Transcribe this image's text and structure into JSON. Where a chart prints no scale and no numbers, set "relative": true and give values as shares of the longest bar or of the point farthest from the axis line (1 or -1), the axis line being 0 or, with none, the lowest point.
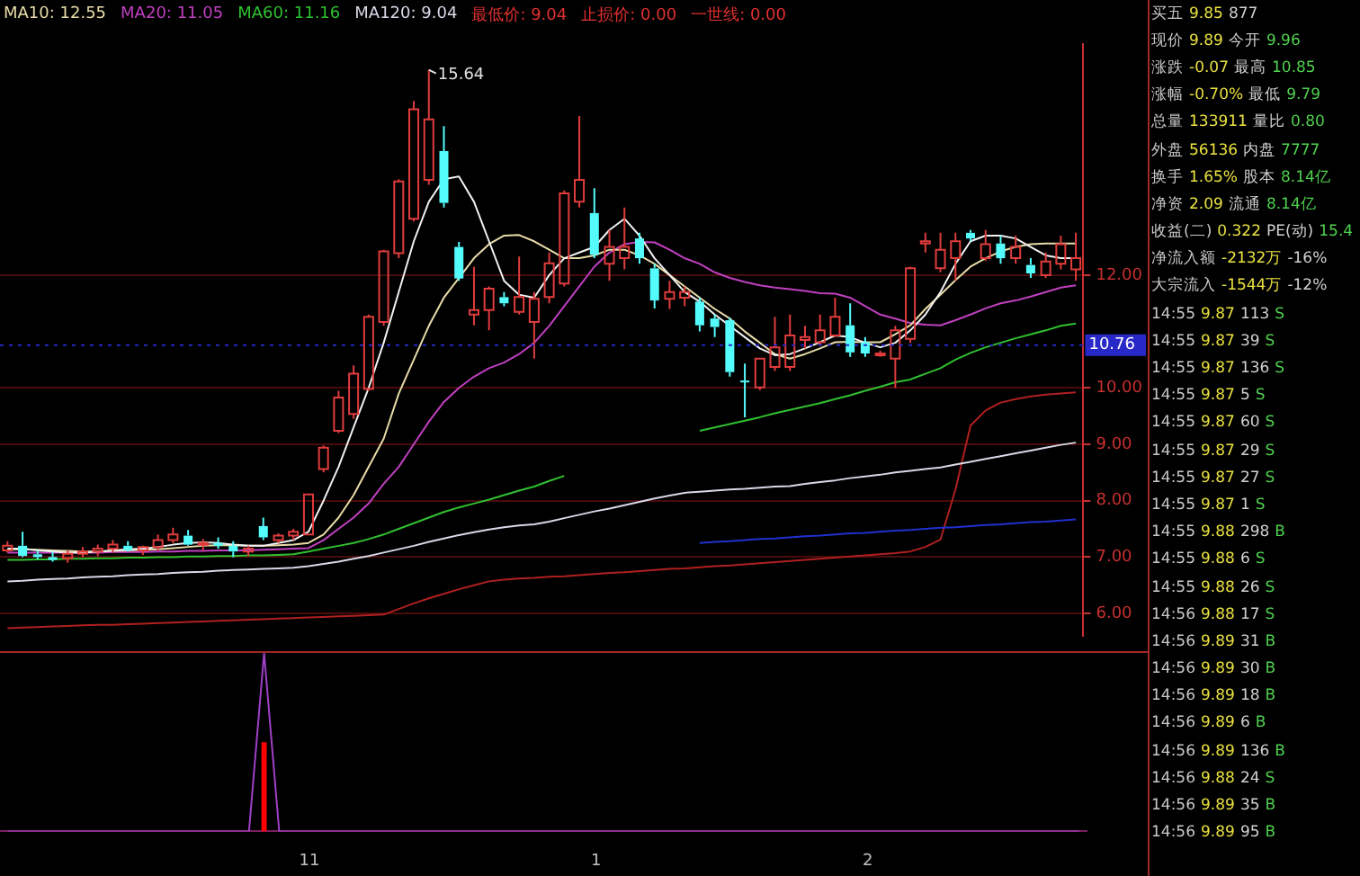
{
  "chart_data": [
    {
      "type": "candlestick",
      "legend": "top left",
      "grid": "y",
      "ylim": [
        5.6,
        16.1
      ],
      "yticks": [
        {
          "value": 6,
          "label": "6.00"
        },
        {
          "value": 7,
          "label": "7.00"
        },
        {
          "value": 8,
          "label": "8.00"
        },
        {
          "value": 9,
          "label": "9.00"
        },
        {
          "value": 10,
          "label": "10.00"
        },
        {
          "value": 12,
          "label": "12.00"
        }
      ],
      "ref_lines": [
        {
          "axis": "y",
          "value": 10.76,
          "label": "10.76",
          "color": "#2828c8"
        }
      ],
      "annotations": [
        "最低价: 9.04",
        "止损价: 0.00",
        "一世线: 0.00",
        "15.64"
      ],
      "categories": [
        null,
        null,
        null,
        null,
        null,
        null,
        null,
        null,
        null,
        null,
        null,
        null,
        null,
        null,
        null,
        null,
        null,
        null,
        null,
        null,
        null,
        null,
        null,
        null,
        null,
        null,
        null,
        null,
        null,
        null,
        null,
        null,
        null,
        null,
        null,
        null,
        null,
        null,
        null,
        null,
        null,
        null,
        null,
        null,
        null,
        null,
        null,
        null,
        null,
        null,
        null,
        null,
        null,
        null,
        null,
        null,
        null,
        null,
        null,
        null,
        null,
        null,
        null,
        null,
        null,
        null,
        null,
        null,
        null,
        null,
        null,
        null
      ],
      "ohlc": [
        [
          7.12,
          7.28,
          7.08,
          7.2
        ],
        [
          7.2,
          7.45,
          7.0,
          7.02
        ],
        [
          7.05,
          7.12,
          6.96,
          7.0
        ],
        [
          7.0,
          7.1,
          6.92,
          6.95
        ],
        [
          6.98,
          7.12,
          6.9,
          7.06
        ],
        [
          7.06,
          7.18,
          7.0,
          7.1
        ],
        [
          7.1,
          7.22,
          7.02,
          7.15
        ],
        [
          7.15,
          7.3,
          7.08,
          7.22
        ],
        [
          7.2,
          7.28,
          7.1,
          7.12
        ],
        [
          7.12,
          7.2,
          7.04,
          7.18
        ],
        [
          7.18,
          7.4,
          7.12,
          7.3
        ],
        [
          7.3,
          7.52,
          7.25,
          7.4
        ],
        [
          7.38,
          7.48,
          7.2,
          7.22
        ],
        [
          7.22,
          7.32,
          7.12,
          7.25
        ],
        [
          7.25,
          7.35,
          7.15,
          7.2
        ],
        [
          7.2,
          7.28,
          7.0,
          7.1
        ],
        [
          7.1,
          7.2,
          7.02,
          7.15
        ],
        [
          7.55,
          7.7,
          7.3,
          7.35
        ],
        [
          7.3,
          7.42,
          7.25,
          7.38
        ],
        [
          7.38,
          7.5,
          7.3,
          7.45
        ],
        [
          7.4,
          8.11,
          7.4,
          8.11
        ],
        [
          8.56,
          8.98,
          8.5,
          8.94
        ],
        [
          9.24,
          9.95,
          9.2,
          9.83
        ],
        [
          9.54,
          10.4,
          9.45,
          10.25
        ],
        [
          9.98,
          11.3,
          9.95,
          11.26
        ],
        [
          11.17,
          12.45,
          11.1,
          12.42
        ],
        [
          12.39,
          13.7,
          12.3,
          13.66
        ],
        [
          13.0,
          15.09,
          12.95,
          14.94
        ],
        [
          13.69,
          15.64,
          13.6,
          14.76
        ],
        [
          14.2,
          14.64,
          13.2,
          13.28
        ],
        [
          12.5,
          12.59,
          11.9,
          11.94
        ],
        [
          11.3,
          12.15,
          11.11,
          11.38
        ],
        [
          11.38,
          11.8,
          11.02,
          11.76
        ],
        [
          11.61,
          11.7,
          11.45,
          11.5
        ],
        [
          11.35,
          12.33,
          11.3,
          11.61
        ],
        [
          11.17,
          11.7,
          10.52,
          11.58
        ],
        [
          11.61,
          12.4,
          11.5,
          12.21
        ],
        [
          11.85,
          13.5,
          11.8,
          13.45
        ],
        [
          13.3,
          14.82,
          13.2,
          13.69
        ],
        [
          13.1,
          13.54,
          12.3,
          12.36
        ],
        [
          12.2,
          12.8,
          11.9,
          12.5
        ],
        [
          12.3,
          13.2,
          12.1,
          12.5
        ],
        [
          12.65,
          12.75,
          12.2,
          12.3
        ],
        [
          12.12,
          12.2,
          11.41,
          11.55
        ],
        [
          11.58,
          11.9,
          11.4,
          11.7
        ],
        [
          11.6,
          11.8,
          11.45,
          11.7
        ],
        [
          11.53,
          11.6,
          11.0,
          11.11
        ],
        [
          11.23,
          11.3,
          10.9,
          11.08
        ],
        [
          11.2,
          11.25,
          10.2,
          10.28
        ],
        [
          10.13,
          10.43,
          9.48,
          10.1
        ],
        [
          10.01,
          10.52,
          9.96,
          10.52
        ],
        [
          10.37,
          11.26,
          10.3,
          10.72
        ],
        [
          10.37,
          11.3,
          10.3,
          10.93
        ],
        [
          10.85,
          11.1,
          10.7,
          10.9
        ],
        [
          10.81,
          11.3,
          10.75,
          11.02
        ],
        [
          10.93,
          11.6,
          10.9,
          11.26
        ],
        [
          11.11,
          11.5,
          10.55,
          10.63
        ],
        [
          10.81,
          10.9,
          10.55,
          10.61
        ],
        [
          10.61,
          10.66,
          10.55,
          10.61
        ],
        [
          10.52,
          11.1,
          10.0,
          11.02
        ],
        [
          10.87,
          12.15,
          10.8,
          12.12
        ],
        [
          12.56,
          12.75,
          12.4,
          12.6
        ],
        [
          12.12,
          12.75,
          12.05,
          12.45
        ],
        [
          12.3,
          12.75,
          11.9,
          12.6
        ],
        [
          12.75,
          12.8,
          12.6,
          12.65
        ],
        [
          12.3,
          12.8,
          12.25,
          12.55
        ],
        [
          12.56,
          12.7,
          12.2,
          12.3
        ],
        [
          12.3,
          12.7,
          12.2,
          12.5
        ],
        [
          12.18,
          12.3,
          11.95,
          12.03
        ],
        [
          12.0,
          12.4,
          11.95,
          12.24
        ],
        [
          12.2,
          12.7,
          12.1,
          12.55
        ],
        [
          12.1,
          12.75,
          11.9,
          12.3
        ]
      ],
      "series": [
        {
          "type": "line",
          "color": "#f0f0f0",
          "values": [
            7.15,
            7.15,
            7.12,
            7.1,
            7.08,
            7.08,
            7.1,
            7.12,
            7.14,
            7.15,
            7.18,
            7.22,
            7.25,
            7.26,
            7.25,
            7.22,
            7.2,
            7.2,
            7.25,
            7.3,
            7.45,
            8.0,
            8.6,
            9.3,
            10.0,
            10.8,
            11.7,
            12.6,
            13.3,
            13.7,
            13.75,
            13.3,
            12.6,
            11.9,
            11.65,
            11.6,
            12.0,
            12.3,
            12.4,
            12.5,
            12.8,
            13.0,
            12.7,
            12.3,
            12.0,
            11.7,
            11.53,
            11.3,
            11.1,
            10.9,
            10.7,
            10.58,
            10.6,
            10.7,
            10.81,
            10.93,
            10.9,
            10.8,
            10.72,
            10.8,
            11.02,
            11.3,
            11.7,
            12.2,
            12.6,
            12.7,
            12.7,
            12.65,
            12.5,
            12.35,
            12.3,
            12.3
          ]
        },
        {
          "type": "line",
          "name": "MA10: 12.55",
          "color": "#e8dca8",
          "values": [
            7.14,
            7.14,
            7.13,
            7.12,
            7.11,
            7.1,
            7.1,
            7.11,
            7.12,
            7.13,
            7.14,
            7.16,
            7.18,
            7.2,
            7.21,
            7.21,
            7.2,
            7.2,
            7.21,
            7.22,
            7.25,
            7.4,
            7.7,
            8.1,
            8.6,
            9.1,
            9.9,
            10.5,
            11.1,
            11.6,
            11.95,
            12.3,
            12.55,
            12.7,
            12.71,
            12.6,
            12.45,
            12.3,
            12.3,
            12.35,
            12.45,
            12.45,
            12.35,
            12.2,
            12.0,
            11.8,
            11.6,
            11.4,
            11.23,
            11.0,
            10.8,
            10.6,
            10.52,
            10.6,
            10.7,
            10.81,
            10.82,
            10.81,
            10.81,
            10.95,
            11.11,
            11.4,
            11.65,
            11.91,
            12.15,
            12.3,
            12.42,
            12.5,
            12.55,
            12.56,
            12.56,
            12.56
          ]
        },
        {
          "type": "line",
          "name": "MA20: 11.05",
          "color": "#c040c0",
          "values": [
            7.08,
            7.08,
            7.08,
            7.08,
            7.08,
            7.08,
            7.08,
            7.09,
            7.09,
            7.09,
            7.1,
            7.1,
            7.11,
            7.11,
            7.12,
            7.12,
            7.12,
            7.13,
            7.14,
            7.15,
            7.16,
            7.3,
            7.5,
            7.7,
            7.95,
            8.3,
            8.6,
            9.0,
            9.4,
            9.75,
            10.0,
            10.2,
            10.35,
            10.45,
            10.6,
            10.8,
            11.1,
            11.45,
            11.8,
            12.15,
            12.4,
            12.55,
            12.59,
            12.58,
            12.45,
            12.3,
            12.2,
            12.05,
            11.95,
            11.88,
            11.82,
            11.78,
            11.75,
            11.72,
            11.68,
            11.67,
            11.6,
            11.45,
            11.3,
            11.23,
            11.15,
            11.12,
            11.11,
            11.2,
            11.3,
            11.41,
            11.5,
            11.55,
            11.62,
            11.7,
            11.78,
            11.82
          ]
        },
        {
          "type": "line",
          "name": "MA60: 11.16",
          "color": "#30c030",
          "values": [
            6.95,
            6.95,
            6.96,
            6.96,
            6.97,
            6.97,
            6.98,
            6.98,
            6.99,
            6.99,
            7.0,
            7.0,
            7.01,
            7.01,
            7.02,
            7.02,
            7.03,
            7.03,
            7.04,
            7.05,
            7.1,
            7.15,
            7.2,
            7.25,
            7.32,
            7.4,
            7.5,
            7.6,
            7.7,
            7.8,
            7.88,
            7.95,
            8.02,
            8.1,
            8.18,
            8.25,
            8.35,
            8.44,
            null,
            null,
            null,
            null,
            null,
            null,
            null,
            null,
            9.24,
            9.3,
            9.36,
            9.42,
            9.48,
            9.55,
            9.61,
            9.67,
            9.73,
            9.8,
            9.87,
            9.95,
            10.02,
            10.1,
            10.15,
            10.25,
            10.35,
            10.5,
            10.62,
            10.72,
            10.8,
            10.88,
            10.95,
            11.02,
            11.1,
            11.14
          ]
        },
        {
          "type": "line",
          "name": "MA120: 9.04",
          "color": "#d8d8e8",
          "values": [
            6.57,
            6.58,
            6.6,
            6.61,
            6.62,
            6.64,
            6.65,
            6.66,
            6.68,
            6.69,
            6.7,
            6.72,
            6.73,
            6.74,
            6.76,
            6.77,
            6.78,
            6.79,
            6.8,
            6.81,
            6.84,
            6.88,
            6.92,
            6.97,
            7.02,
            7.08,
            7.14,
            7.2,
            7.27,
            7.33,
            7.39,
            7.44,
            7.49,
            7.53,
            7.56,
            7.58,
            7.63,
            7.69,
            7.75,
            7.81,
            7.86,
            7.92,
            7.98,
            8.04,
            8.09,
            8.14,
            8.16,
            8.18,
            8.2,
            8.21,
            8.23,
            8.25,
            8.26,
            8.3,
            8.33,
            8.36,
            8.4,
            8.43,
            8.46,
            8.5,
            8.53,
            8.56,
            8.59,
            8.64,
            8.69,
            8.74,
            8.79,
            8.84,
            8.89,
            8.94,
            8.99,
            9.03
          ]
        },
        {
          "type": "line",
          "color": "#2030d0",
          "values": [
            null,
            null,
            null,
            null,
            null,
            null,
            null,
            null,
            null,
            null,
            null,
            null,
            null,
            null,
            null,
            null,
            null,
            null,
            null,
            null,
            null,
            null,
            null,
            null,
            null,
            null,
            null,
            null,
            null,
            null,
            null,
            null,
            null,
            null,
            null,
            null,
            null,
            null,
            null,
            null,
            null,
            null,
            null,
            null,
            null,
            null,
            7.25,
            7.27,
            7.28,
            7.3,
            7.32,
            7.33,
            7.35,
            7.37,
            7.38,
            7.4,
            7.42,
            7.43,
            7.45,
            7.47,
            7.48,
            7.5,
            7.52,
            7.53,
            7.55,
            7.57,
            7.58,
            7.6,
            7.62,
            7.63,
            7.65,
            7.67
          ]
        },
        {
          "type": "line",
          "color": "#b02020",
          "values": [
            5.74,
            5.75,
            5.76,
            5.77,
            5.78,
            5.79,
            5.8,
            5.8,
            5.81,
            5.82,
            5.83,
            5.84,
            5.85,
            5.86,
            5.87,
            5.88,
            5.89,
            5.9,
            5.91,
            5.92,
            5.93,
            5.94,
            5.95,
            5.96,
            5.97,
            5.98,
            6.08,
            6.18,
            6.27,
            6.35,
            6.43,
            6.5,
            6.57,
            6.6,
            6.62,
            6.63,
            6.65,
            6.66,
            6.68,
            6.7,
            6.72,
            6.73,
            6.75,
            6.77,
            6.79,
            6.8,
            6.82,
            6.84,
            6.85,
            6.87,
            6.89,
            6.91,
            6.93,
            6.95,
            6.97,
            6.99,
            7.01,
            7.03,
            7.05,
            7.07,
            7.1,
            7.18,
            7.31,
            8.2,
            9.33,
            9.6,
            9.74,
            9.8,
            9.85,
            9.88,
            9.9,
            9.92
          ]
        }
      ]
    },
    {
      "type": "line",
      "relative": true,
      "tick_labels": "x",
      "categories": [
        null,
        null,
        null,
        null,
        null,
        null,
        null,
        null,
        null,
        null,
        null,
        null,
        null,
        null,
        null,
        null,
        null,
        null,
        null,
        null,
        "11",
        null,
        null,
        null,
        null,
        null,
        null,
        null,
        null,
        null,
        null,
        null,
        null,
        null,
        null,
        null,
        null,
        null,
        null,
        "1",
        null,
        null,
        null,
        null,
        null,
        null,
        null,
        null,
        null,
        null,
        null,
        null,
        null,
        null,
        null,
        null,
        null,
        "2",
        null,
        null,
        null,
        null,
        null,
        null,
        null,
        null,
        null,
        null,
        null,
        null,
        null,
        null
      ],
      "series": [
        {
          "type": "line",
          "color": "#a040c8",
          "values": [
            0,
            0,
            0,
            0,
            0,
            0,
            0,
            0,
            0,
            0,
            0,
            0,
            0,
            0,
            0,
            0,
            0,
            1,
            0,
            0,
            0,
            0,
            0,
            0,
            0,
            0,
            0,
            0,
            0,
            0,
            0,
            0,
            0,
            0,
            0,
            0,
            0,
            0,
            0,
            0,
            0,
            0,
            0,
            0,
            0,
            0,
            0,
            0,
            0,
            0,
            0,
            0,
            0,
            0,
            0,
            0,
            0,
            0,
            0,
            0,
            0,
            0,
            0,
            0,
            0,
            0,
            0,
            0,
            0,
            0,
            0,
            0
          ]
        },
        {
          "type": "bar",
          "color": "#ff0000",
          "values": [
            0,
            0,
            0,
            0,
            0,
            0,
            0,
            0,
            0,
            0,
            0,
            0,
            0,
            0,
            0,
            0,
            0,
            0.5,
            0,
            0,
            0,
            0,
            0,
            0,
            0,
            0,
            0,
            0,
            0,
            0,
            0,
            0,
            0,
            0,
            0,
            0,
            0,
            0,
            0,
            0,
            0,
            0,
            0,
            0,
            0,
            0,
            0,
            0,
            0,
            0,
            0,
            0,
            0,
            0,
            0,
            0,
            0,
            0,
            0,
            0,
            0,
            0,
            0,
            0,
            0,
            0,
            0,
            0,
            0,
            0,
            0,
            0
          ]
        }
      ]
    },
    {
      "type": "other",
      "annotations": [
        "买五 9.85 877",
        "现价 9.89 今开 9.96",
        "涨跌 -0.07 最高 10.85",
        "涨幅 -0.70% 最低 9.79",
        "总量 133911 量比 0.80",
        "外盘 56136 内盘 7777",
        "换手 1.65% 股本 8.14亿",
        "净资 2.09 流通 8.14亿",
        "收益(二) 0.322 PE(动) 15.4",
        "净流入额 -2132万 -16%",
        "大宗流入 -1544万 -12%",
        "14:55 9.87 113 S",
        "14:55 9.87 39 S",
        "14:55 9.87 136 S",
        "14:55 9.87 5 S",
        "14:55 9.87 60 S",
        "14:55 9.87 29 S",
        "14:55 9.87 27 S",
        "14:55 9.87 1 S",
        "14:55 9.88 298 B",
        "14:55 9.88 6 S",
        "14:55 9.88 26 S",
        "14:56 9.88 17 S",
        "14:56 9.89 31 B",
        "14:56 9.89 30 B",
        "14:56 9.89 18 B",
        "14:56 9.89 6 B",
        "14:56 9.89 136 B",
        "14:56 9.88 24 S",
        "14:56 9.89 35 B",
        "14:56 9.89 95 B"
      ]
    }
  ]
}
